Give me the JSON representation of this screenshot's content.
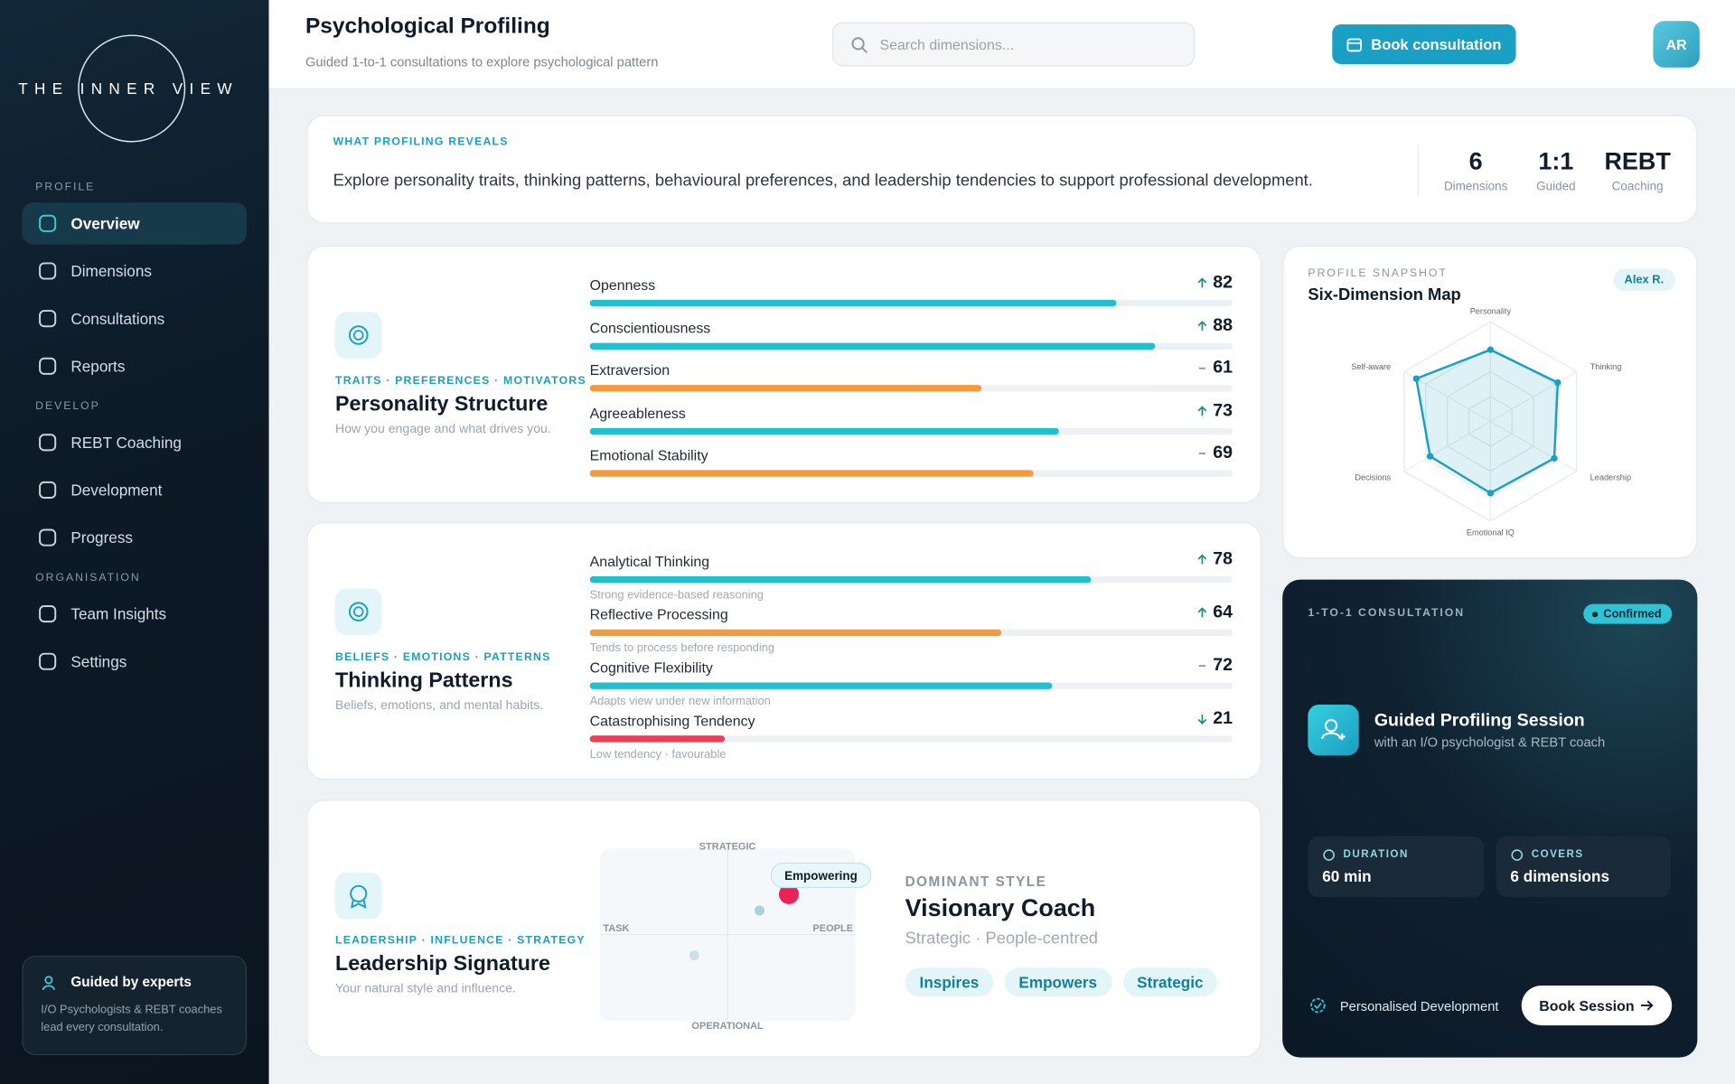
{
  "sidebar": {
    "brand": "THE INNER VIEW",
    "nav": [
      {
        "section": "PROFILE",
        "items": [
          {
            "label": "Overview",
            "active": true
          },
          {
            "label": "Dimensions"
          },
          {
            "label": "Consultations"
          },
          {
            "label": "Reports"
          }
        ]
      },
      {
        "section": "DEVELOP",
        "items": [
          {
            "label": "REBT Coaching"
          },
          {
            "label": "Development"
          },
          {
            "label": "Progress"
          }
        ]
      },
      {
        "section": "ORGANISATION",
        "items": [
          {
            "label": "Team Insights"
          },
          {
            "label": "Settings"
          }
        ]
      }
    ],
    "footer": {
      "title": "Guided by experts",
      "text": "I/O Psychologists & REBT coaches lead every consultation."
    }
  },
  "header": {
    "title": "Psychological Profiling",
    "subtitle": "Guided 1-to-1 consultations to explore psychological pattern",
    "search_placeholder": "Search dimensions...",
    "button": "Book consultation",
    "avatar": "AR"
  },
  "reveal": {
    "label": "WHAT PROFILING REVEALS",
    "text": "Explore personality traits, thinking patterns, behavioural preferences, and leadership tendencies to support professional development.",
    "stats": [
      {
        "value": "6",
        "label": "Dimensions"
      },
      {
        "value": "1:1",
        "label": "Guided"
      },
      {
        "value": "REBT",
        "label": "Coaching"
      }
    ]
  },
  "profile_cards": [
    {
      "tags": "TRAITS · PREFERENCES · MOTIVATORS",
      "title": "Personality Structure",
      "description": "How you engage and what drives you.",
      "range": [
        0,
        100
      ],
      "metrics": [
        {
          "name": "Openness",
          "value": 82,
          "trend": "up",
          "color": "#22c0cf"
        },
        {
          "name": "Conscientiousness",
          "value": 88,
          "trend": "up",
          "color": "#22c0cf"
        },
        {
          "name": "Extraversion",
          "value": 61,
          "trend": "flat",
          "color": "#f39a3d"
        },
        {
          "name": "Agreeableness",
          "value": 73,
          "trend": "up",
          "color": "#22c0cf"
        },
        {
          "name": "Emotional Stability",
          "value": 69,
          "trend": "flat",
          "color": "#f39a3d"
        }
      ]
    },
    {
      "tags": "BELIEFS · EMOTIONS · PATTERNS",
      "title": "Thinking Patterns",
      "description": "Beliefs, emotions, and mental habits.",
      "range": [
        0,
        100
      ],
      "metrics": [
        {
          "name": "Analytical Thinking",
          "value": 78,
          "trend": "up",
          "color": "#22c0cf",
          "note": "Strong evidence-based reasoning"
        },
        {
          "name": "Reflective Processing",
          "value": 64,
          "trend": "up",
          "color": "#f39a3d",
          "note": "Tends to process before responding"
        },
        {
          "name": "Cognitive Flexibility",
          "value": 72,
          "trend": "flat",
          "color": "#22c0cf",
          "note": "Adapts view under new information"
        },
        {
          "name": "Catastrophising Tendency",
          "value": 21,
          "trend": "down",
          "color": "#ef3d56",
          "note": "Low tendency · favourable"
        }
      ]
    }
  ],
  "leadership": {
    "tags": "LEADERSHIP · INFLUENCE · STRATEGY",
    "title": "Leadership Signature",
    "description": "Your natural style and influence.",
    "quadrant": {
      "top": "STRATEGIC",
      "bottom": "OPERATIONAL",
      "left": "TASK",
      "right": "PEOPLE",
      "xlim": [
        -1,
        1
      ],
      "ylim": [
        -1,
        1
      ],
      "points": [
        {
          "label": "Empowering",
          "x": 0.48,
          "y": 0.47,
          "color": "#ef1f5a"
        },
        {
          "x": 0.25,
          "y": 0.28,
          "color": "#a9d3da"
        },
        {
          "x": -0.26,
          "y": -0.24,
          "color": "#cfe0e4"
        }
      ]
    },
    "style": {
      "label": "DOMINANT STYLE",
      "title": "Visionary Coach",
      "subtitle": "Strategic · People-centred",
      "chips": [
        "Inspires",
        "Empowers",
        "Strategic"
      ]
    }
  },
  "snapshot": {
    "label": "PROFILE SNAPSHOT",
    "title": "Six-Dimension Map",
    "badge": "Alex R.",
    "radar": {
      "axes": [
        "Personality",
        "Thinking",
        "Leadership",
        "Emotional IQ",
        "Decisions",
        "Self-aware"
      ],
      "values": [
        72,
        78,
        74,
        72,
        70,
        86
      ],
      "rlim": [
        0,
        100
      ],
      "rticks": [
        25,
        50,
        75,
        100
      ],
      "color": "#1a9fc0"
    }
  },
  "consultation": {
    "label": "1-TO-1 CONSULTATION",
    "badge": "Confirmed",
    "title": "Guided Profiling Session",
    "subtitle": "with an I/O psychologist & REBT coach",
    "details": [
      {
        "label": "DURATION",
        "value": "60 min"
      },
      {
        "label": "COVERS",
        "value": "6 dimensions"
      }
    ],
    "footer": "Personalised Development",
    "button": "Book Session"
  }
}
